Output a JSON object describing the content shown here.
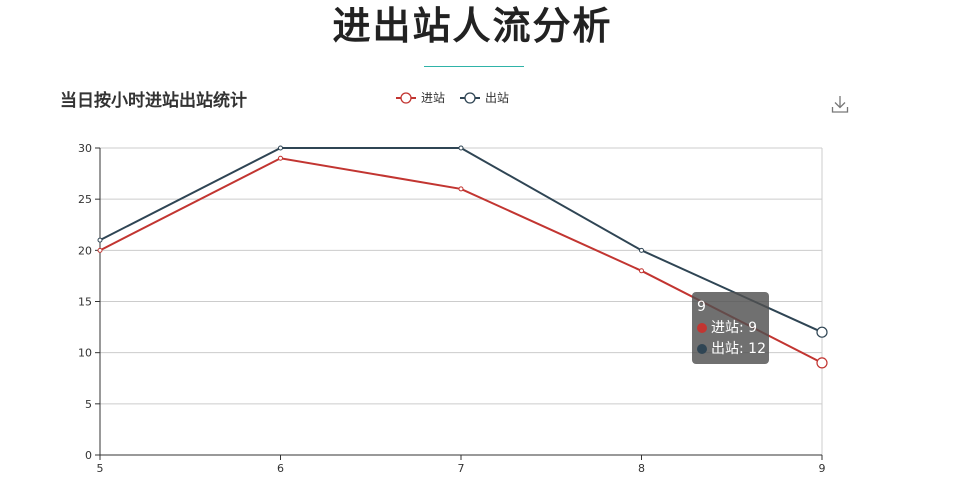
{
  "page": {
    "title": "进出站人流分析"
  },
  "chart_data": {
    "type": "line",
    "title": "当日按小时进站出站统计",
    "x": [
      5,
      6,
      7,
      8,
      9
    ],
    "xlabel": "",
    "ylabel": "",
    "ylim": [
      0,
      30
    ],
    "yticks": [
      0,
      5,
      10,
      15,
      20,
      25,
      30
    ],
    "grid": true,
    "legend_position": "top-center",
    "series": [
      {
        "name": "进站",
        "values": [
          20,
          29,
          26,
          18,
          9
        ],
        "color": "#c23531"
      },
      {
        "name": "出站",
        "values": [
          21,
          30,
          30,
          20,
          12
        ],
        "color": "#2f4554"
      }
    ]
  },
  "tooltip": {
    "header": "9",
    "rows": [
      {
        "label": "进站: 9",
        "color": "#c23531"
      },
      {
        "label": "出站: 12",
        "color": "#2f4554"
      }
    ]
  },
  "toolbox": {
    "icon": "download-icon"
  }
}
